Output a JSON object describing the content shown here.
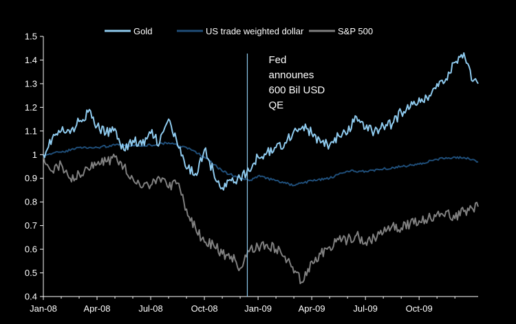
{
  "chart_data": {
    "type": "line",
    "title": "",
    "xlabel": "",
    "ylabel": "",
    "ylim": [
      0.4,
      1.5
    ],
    "yticks": [
      "0.4",
      "0.5",
      "0.6",
      "0.7",
      "0.8",
      "0.9",
      "1",
      "1.1",
      "1.2",
      "1.3",
      "1.4",
      "1.5"
    ],
    "xticks": [
      "Jan-08",
      "Apr-08",
      "Jul-08",
      "Oct-08",
      "Jan-09",
      "Apr-09",
      "Jul-09",
      "Oct-09"
    ],
    "x_range_months": [
      0,
      24.3
    ],
    "grid": false,
    "legend_position": "top-center",
    "annotation": {
      "x_month": 11.4,
      "lines": [
        "Fed",
        "announes",
        "600  Bil USD",
        "QE"
      ]
    },
    "series": [
      {
        "name": "Gold",
        "color": "#8fcbef",
        "x": [
          0,
          0.5,
          1.0,
          1.5,
          2.0,
          2.5,
          3.0,
          3.5,
          4.0,
          4.5,
          5.0,
          5.5,
          6.0,
          6.5,
          7.0,
          7.5,
          8.0,
          8.5,
          9.0,
          9.5,
          10.0,
          10.5,
          11.0,
          11.5,
          12.0,
          12.5,
          13.0,
          13.5,
          14.0,
          14.5,
          15.0,
          15.5,
          16.0,
          16.5,
          17.0,
          17.5,
          18.0,
          18.5,
          19.0,
          19.5,
          20.0,
          20.5,
          21.0,
          21.5,
          22.0,
          22.5,
          23.0,
          23.5,
          24.0,
          24.3
        ],
        "values": [
          1.0,
          1.07,
          1.1,
          1.09,
          1.14,
          1.18,
          1.12,
          1.09,
          1.11,
          1.02,
          1.06,
          1.04,
          1.09,
          1.05,
          1.15,
          1.04,
          0.94,
          0.92,
          1.02,
          0.93,
          0.86,
          0.89,
          0.9,
          0.93,
          0.99,
          1.01,
          1.03,
          1.05,
          1.1,
          1.12,
          1.09,
          1.05,
          1.04,
          1.08,
          1.09,
          1.16,
          1.11,
          1.1,
          1.12,
          1.13,
          1.18,
          1.2,
          1.24,
          1.23,
          1.3,
          1.32,
          1.39,
          1.43,
          1.31,
          1.3
        ]
      },
      {
        "name": "US trade weighted dollar",
        "color": "#1f4e79",
        "x": [
          0,
          1,
          2,
          3,
          4,
          5,
          6,
          7,
          8,
          9,
          10,
          11,
          11.5,
          12,
          13,
          14,
          15,
          16,
          17,
          18,
          19,
          20,
          21,
          22,
          23,
          24,
          24.3
        ],
        "values": [
          1.0,
          1.01,
          1.03,
          1.03,
          1.04,
          1.04,
          1.04,
          1.05,
          1.03,
          0.99,
          0.93,
          0.9,
          0.89,
          0.91,
          0.89,
          0.87,
          0.89,
          0.9,
          0.93,
          0.93,
          0.94,
          0.95,
          0.96,
          0.98,
          0.99,
          0.98,
          0.97
        ]
      },
      {
        "name": "S&P 500",
        "color": "#808080",
        "x": [
          0,
          0.5,
          1.0,
          1.5,
          2.0,
          2.5,
          3.0,
          3.5,
          4.0,
          4.5,
          5.0,
          5.5,
          6.0,
          6.5,
          7.0,
          7.5,
          8.0,
          8.5,
          9.0,
          9.5,
          10.0,
          10.5,
          11.0,
          11.5,
          12.0,
          12.5,
          13.0,
          13.5,
          14.0,
          14.5,
          15.0,
          15.5,
          16.0,
          16.5,
          17.0,
          17.5,
          18.0,
          18.5,
          19.0,
          19.5,
          20.0,
          20.5,
          21.0,
          21.5,
          22.0,
          22.5,
          23.0,
          23.5,
          24.0,
          24.3
        ],
        "values": [
          1.0,
          0.93,
          0.96,
          0.9,
          0.92,
          0.94,
          0.96,
          0.97,
          0.99,
          0.95,
          0.9,
          0.86,
          0.87,
          0.9,
          0.86,
          0.88,
          0.77,
          0.69,
          0.63,
          0.62,
          0.58,
          0.57,
          0.52,
          0.59,
          0.61,
          0.62,
          0.6,
          0.57,
          0.5,
          0.46,
          0.55,
          0.58,
          0.61,
          0.64,
          0.64,
          0.66,
          0.63,
          0.65,
          0.67,
          0.7,
          0.69,
          0.71,
          0.72,
          0.73,
          0.75,
          0.76,
          0.73,
          0.76,
          0.77,
          0.78
        ]
      }
    ]
  }
}
